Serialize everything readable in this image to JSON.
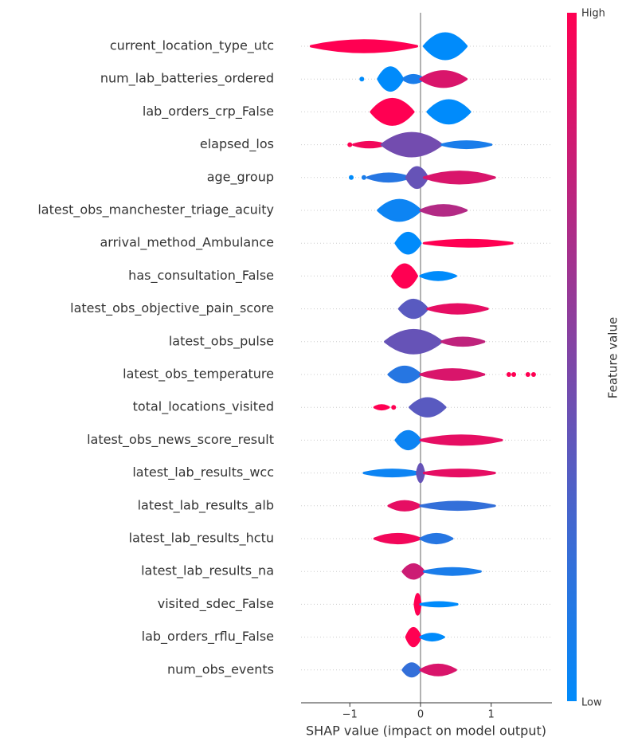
{
  "chart_data": {
    "type": "beeswarm",
    "xlabel": "SHAP value (impact on model output)",
    "xlim": [
      -1.69,
      1.86
    ],
    "xticks": [
      {
        "value": -1,
        "label": "−1"
      },
      0,
      1
    ],
    "colorbar": {
      "label": "Feature value",
      "high": "High",
      "low": "Low",
      "low_color": "#008bfb",
      "high_color": "#ff0052"
    },
    "rows": [
      {
        "label": "current_location_type_utc",
        "clusters": [
          {
            "x": [
              -1.55,
              -0.05
            ],
            "density": 0.45,
            "value": 1
          },
          {
            "x": [
              0.05,
              0.65
            ],
            "density": 1,
            "value": 0
          }
        ],
        "points": []
      },
      {
        "label": "num_lab_batteries_ordered",
        "clusters": [
          {
            "x": [
              -0.6,
              -0.25
            ],
            "density": 0.9,
            "value": 0
          },
          {
            "x": [
              -0.25,
              0.05
            ],
            "density": 0.3,
            "value": 0.1
          },
          {
            "x": [
              0.0,
              0.65
            ],
            "density": 0.6,
            "value": 0.85
          }
        ],
        "points": [
          {
            "x": -0.83,
            "value": 0
          }
        ]
      },
      {
        "label": "lab_orders_crp_False",
        "clusters": [
          {
            "x": [
              -0.7,
              -0.1
            ],
            "density": 1,
            "value": 1
          },
          {
            "x": [
              0.1,
              0.7
            ],
            "density": 0.9,
            "value": 0
          }
        ],
        "points": []
      },
      {
        "label": "elapsed_los",
        "clusters": [
          {
            "x": [
              -0.95,
              -0.5
            ],
            "density": 0.2,
            "value": 0.95
          },
          {
            "x": [
              -0.55,
              0.3
            ],
            "density": 0.9,
            "value": 0.45
          },
          {
            "x": [
              0.3,
              1.0
            ],
            "density": 0.25,
            "value": 0.1
          }
        ],
        "points": [
          {
            "x": -1.0,
            "value": 1
          }
        ]
      },
      {
        "label": "age_group",
        "clusters": [
          {
            "x": [
              -0.75,
              -0.15
            ],
            "density": 0.3,
            "value": 0.15
          },
          {
            "x": [
              -0.2,
              0.1
            ],
            "density": 0.8,
            "value": 0.4
          },
          {
            "x": [
              0.05,
              1.05
            ],
            "density": 0.45,
            "value": 0.85
          }
        ],
        "points": [
          {
            "x": -0.98,
            "value": 0
          },
          {
            "x": -0.8,
            "value": 0.1
          }
        ]
      },
      {
        "label": "latest_obs_manchester_triage_acuity",
        "clusters": [
          {
            "x": [
              -0.6,
              0.0
            ],
            "density": 0.8,
            "value": 0.05
          },
          {
            "x": [
              0.0,
              0.65
            ],
            "density": 0.4,
            "value": 0.7
          }
        ],
        "points": []
      },
      {
        "label": "arrival_method_Ambulance",
        "clusters": [
          {
            "x": [
              -0.35,
              0.0
            ],
            "density": 0.8,
            "value": 0
          },
          {
            "x": [
              0.05,
              1.3
            ],
            "density": 0.25,
            "value": 1
          }
        ],
        "points": []
      },
      {
        "label": "has_consultation_False",
        "clusters": [
          {
            "x": [
              -0.4,
              -0.05
            ],
            "density": 0.9,
            "value": 1
          },
          {
            "x": [
              0.0,
              0.5
            ],
            "density": 0.3,
            "value": 0
          }
        ],
        "points": []
      },
      {
        "label": "latest_obs_objective_pain_score",
        "clusters": [
          {
            "x": [
              -0.3,
              0.1
            ],
            "density": 0.7,
            "value": 0.35
          },
          {
            "x": [
              0.1,
              0.95
            ],
            "density": 0.35,
            "value": 0.9
          }
        ],
        "points": []
      },
      {
        "label": "latest_obs_pulse",
        "clusters": [
          {
            "x": [
              -0.5,
              0.3
            ],
            "density": 0.9,
            "value": 0.4
          },
          {
            "x": [
              0.3,
              0.9
            ],
            "density": 0.3,
            "value": 0.75
          }
        ],
        "points": []
      },
      {
        "label": "latest_obs_temperature",
        "clusters": [
          {
            "x": [
              -0.45,
              0.0
            ],
            "density": 0.6,
            "value": 0.15
          },
          {
            "x": [
              0.0,
              0.9
            ],
            "density": 0.4,
            "value": 0.85
          }
        ],
        "points": [
          {
            "x": 1.25,
            "value": 1
          },
          {
            "x": 1.32,
            "value": 1
          },
          {
            "x": 1.52,
            "value": 1
          },
          {
            "x": 1.6,
            "value": 1
          }
        ]
      },
      {
        "label": "total_locations_visited",
        "clusters": [
          {
            "x": [
              -0.65,
              -0.45
            ],
            "density": 0.15,
            "value": 1
          },
          {
            "x": [
              -0.15,
              0.35
            ],
            "density": 0.7,
            "value": 0.35
          }
        ],
        "points": [
          {
            "x": -0.38,
            "value": 1
          }
        ]
      },
      {
        "label": "latest_obs_news_score_result",
        "clusters": [
          {
            "x": [
              -0.35,
              0.0
            ],
            "density": 0.7,
            "value": 0.05
          },
          {
            "x": [
              0.0,
              1.15
            ],
            "density": 0.35,
            "value": 0.9
          }
        ],
        "points": []
      },
      {
        "label": "latest_lab_results_wcc",
        "clusters": [
          {
            "x": [
              -0.8,
              0.0
            ],
            "density": 0.25,
            "value": 0.05
          },
          {
            "x": [
              -0.05,
              0.05
            ],
            "density": 0.7,
            "value": 0.4
          },
          {
            "x": [
              0.05,
              1.05
            ],
            "density": 0.25,
            "value": 0.9
          }
        ],
        "points": []
      },
      {
        "label": "latest_lab_results_alb",
        "clusters": [
          {
            "x": [
              -0.45,
              0.0
            ],
            "density": 0.35,
            "value": 0.9
          },
          {
            "x": [
              0.0,
              1.05
            ],
            "density": 0.3,
            "value": 0.2
          }
        ],
        "points": []
      },
      {
        "label": "latest_lab_results_hctu",
        "clusters": [
          {
            "x": [
              -0.65,
              0.0
            ],
            "density": 0.35,
            "value": 0.95
          },
          {
            "x": [
              0.0,
              0.45
            ],
            "density": 0.35,
            "value": 0.15
          }
        ],
        "points": []
      },
      {
        "label": "latest_lab_results_na",
        "clusters": [
          {
            "x": [
              -0.25,
              0.05
            ],
            "density": 0.55,
            "value": 0.8
          },
          {
            "x": [
              0.05,
              0.85
            ],
            "density": 0.25,
            "value": 0.1
          }
        ],
        "points": []
      },
      {
        "label": "visited_sdec_False",
        "clusters": [
          {
            "x": [
              -0.08,
              0.0
            ],
            "density": 0.8,
            "value": 1
          },
          {
            "x": [
              0.0,
              0.52
            ],
            "density": 0.15,
            "value": 0
          }
        ],
        "points": []
      },
      {
        "label": "lab_orders_rflu_False",
        "clusters": [
          {
            "x": [
              -0.2,
              0.0
            ],
            "density": 0.7,
            "value": 1
          },
          {
            "x": [
              0.0,
              0.33
            ],
            "density": 0.25,
            "value": 0
          }
        ],
        "points": []
      },
      {
        "label": "num_obs_events",
        "clusters": [
          {
            "x": [
              -0.25,
              0.0
            ],
            "density": 0.5,
            "value": 0.2
          },
          {
            "x": [
              0.0,
              0.5
            ],
            "density": 0.4,
            "value": 0.85
          }
        ],
        "points": []
      }
    ]
  }
}
